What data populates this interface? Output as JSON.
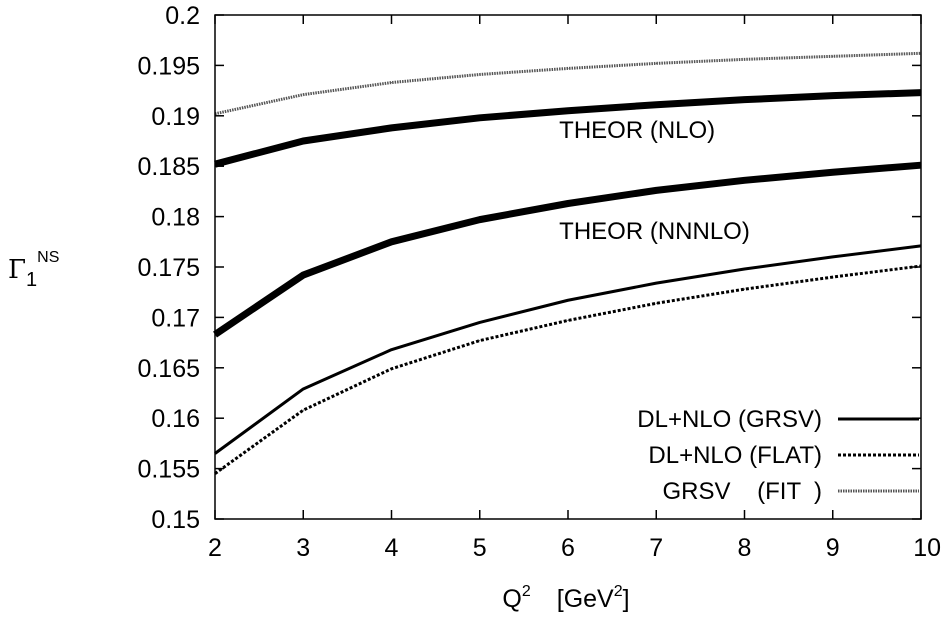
{
  "chart_data": {
    "type": "line",
    "title": "",
    "xlabel": {
      "base": "Q",
      "sup": "2",
      "unit_prefix": "[GeV",
      "unit_sup": "2",
      "unit_suffix": "]"
    },
    "ylabel": {
      "base": "Γ",
      "sub": "1",
      "sup": "NS"
    },
    "xlim": [
      2,
      10
    ],
    "ylim": [
      0.15,
      0.2
    ],
    "xticks": [
      2,
      3,
      4,
      5,
      6,
      7,
      8,
      9,
      10
    ],
    "yticks": [
      0.15,
      0.155,
      0.16,
      0.165,
      0.17,
      0.175,
      0.18,
      0.185,
      0.19,
      0.195,
      0.2
    ],
    "ytick_labels": [
      "0.15",
      "0.155",
      "0.16",
      "0.165",
      "0.17",
      "0.175",
      "0.18",
      "0.185",
      "0.19",
      "0.195",
      "0.2"
    ],
    "grid": false,
    "legend_position": "bottom-right",
    "x": [
      2,
      3,
      4,
      5,
      6,
      7,
      8,
      9,
      10
    ],
    "series": [
      {
        "name": "GRSV    (FIT  )",
        "style": "fit",
        "legend": true,
        "values": [
          0.1902,
          0.1921,
          0.1933,
          0.1941,
          0.1947,
          0.1952,
          0.1956,
          0.1959,
          0.1962
        ]
      },
      {
        "name": "THEOR (NLO)",
        "style": "thick",
        "legend": false,
        "values": [
          0.1852,
          0.1875,
          0.1888,
          0.1898,
          0.1905,
          0.1911,
          0.1916,
          0.192,
          0.1923
        ]
      },
      {
        "name": "THEOR (NNNLO)",
        "style": "thick",
        "legend": false,
        "values": [
          0.1683,
          0.1742,
          0.1775,
          0.1797,
          0.1813,
          0.1826,
          0.1836,
          0.1844,
          0.1851
        ]
      },
      {
        "name": "DL+NLO (GRSV)",
        "style": "solid",
        "legend": true,
        "values": [
          0.1565,
          0.1629,
          0.1668,
          0.1695,
          0.1717,
          0.1734,
          0.1748,
          0.176,
          0.1771
        ]
      },
      {
        "name": "DL+NLO (FLAT)",
        "style": "dotted",
        "legend": true,
        "values": [
          0.1545,
          0.1608,
          0.1649,
          0.1677,
          0.1697,
          0.1714,
          0.1728,
          0.174,
          0.1751
        ]
      }
    ],
    "annotations": [
      {
        "text": "THEOR (NLO)",
        "x": 5.9,
        "y": 0.1878
      },
      {
        "text": "THEOR (NNNLO)",
        "x": 5.9,
        "y": 0.1778
      }
    ]
  }
}
